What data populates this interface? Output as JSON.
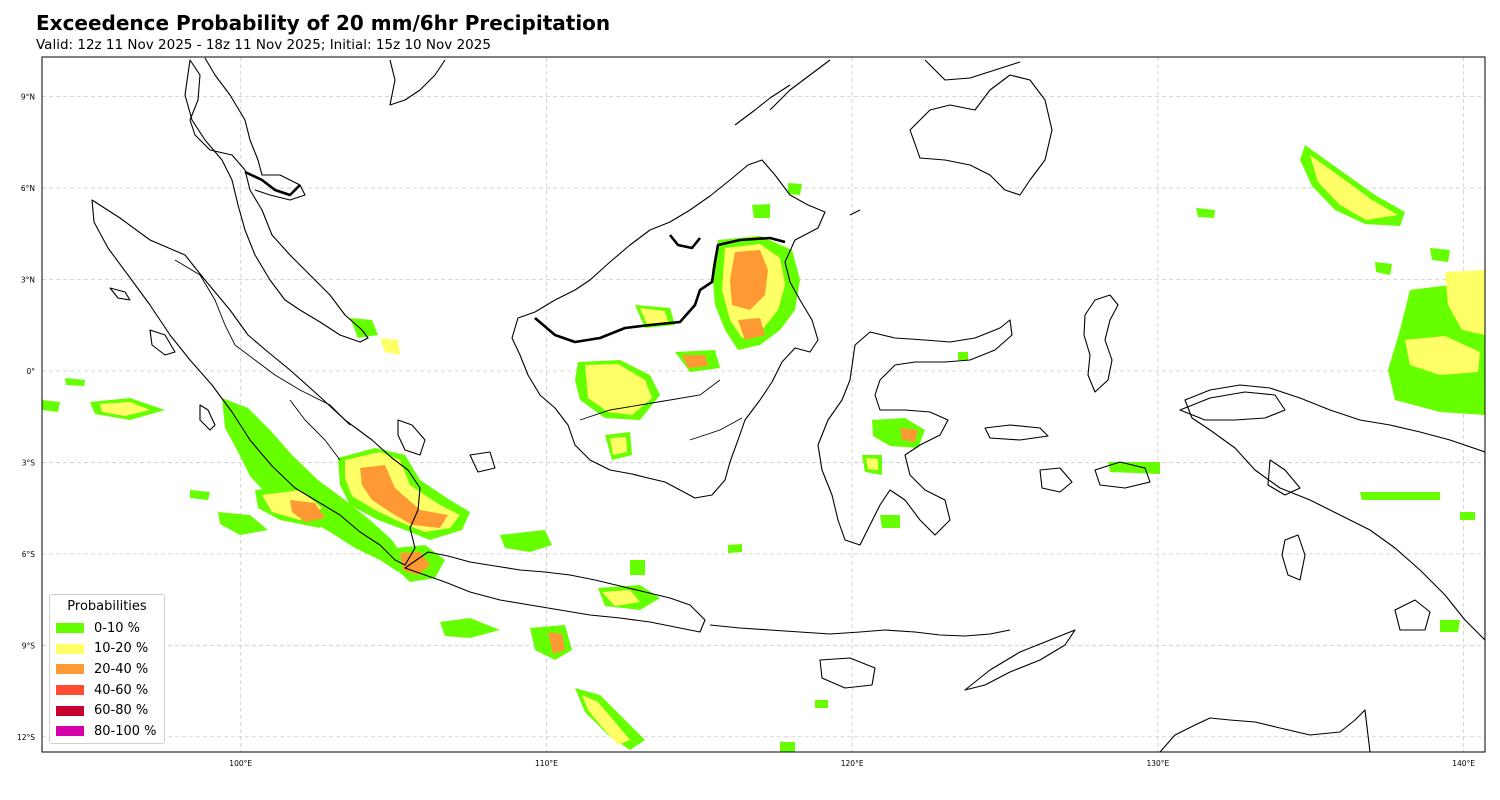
{
  "header": {
    "title": "Exceedence Probability of 20 mm/6hr Precipitation",
    "subtitle": "Valid: 12z 11 Nov 2025 - 18z 11 Nov 2025; Initial: 15z 10 Nov 2025"
  },
  "axes": {
    "lon_labels": [
      "100°E",
      "110°E",
      "120°E",
      "130°E",
      "140°E"
    ],
    "lat_labels": [
      "9°N",
      "6°N",
      "3°N",
      "0°",
      "3°S",
      "6°S",
      "9°S",
      "12°S"
    ],
    "lon_values": [
      100,
      110,
      120,
      130,
      140
    ],
    "lat_values": [
      9,
      6,
      3,
      0,
      -3,
      -6,
      -9,
      -12
    ],
    "extent": {
      "lon_min": 93.5,
      "lon_max": 140.7,
      "lat_min": -12.5,
      "lat_max": 10.3
    },
    "grid": true
  },
  "legend": {
    "title": "Probabilities",
    "placement": "lower-left",
    "items": [
      {
        "label": "0-10 %",
        "color": "#66ff00"
      },
      {
        "label": "10-20 %",
        "color": "#ffff66"
      },
      {
        "label": "20-40 %",
        "color": "#ff9933"
      },
      {
        "label": "40-60 %",
        "color": "#ff4c33"
      },
      {
        "label": "60-80 %",
        "color": "#c8002f"
      },
      {
        "label": "80-100 %",
        "color": "#d600aa"
      }
    ]
  },
  "colors": {
    "coastline": "#000000",
    "gridline": "#cccccc"
  }
}
